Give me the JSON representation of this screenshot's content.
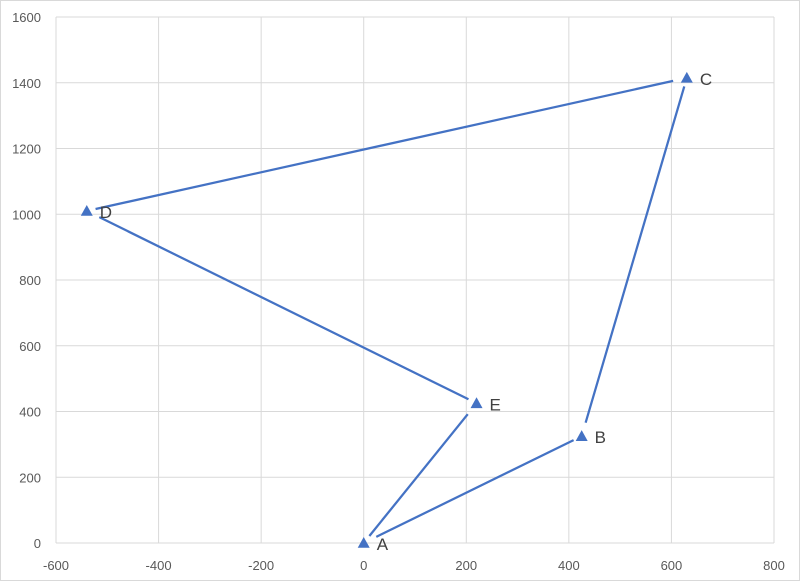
{
  "chart_data": {
    "type": "scatter",
    "title": "",
    "xlabel": "",
    "ylabel": "",
    "xlim": [
      -600,
      800
    ],
    "ylim": [
      0,
      1600
    ],
    "x_ticks": [
      -600,
      -400,
      -200,
      0,
      200,
      400,
      600,
      800
    ],
    "y_ticks": [
      0,
      200,
      400,
      600,
      800,
      1000,
      1200,
      1400,
      1600
    ],
    "grid": true,
    "legend": "none",
    "marker": "triangle",
    "line_style": "straight lines with gaps near points",
    "color": "#4472c4",
    "points": [
      {
        "label": "A",
        "x": 0,
        "y": 0
      },
      {
        "label": "B",
        "x": 425,
        "y": 325
      },
      {
        "label": "C",
        "x": 630,
        "y": 1415
      },
      {
        "label": "D",
        "x": -540,
        "y": 1010
      },
      {
        "label": "E",
        "x": 220,
        "y": 425
      },
      {
        "label": "A",
        "x": 0,
        "y": 0
      }
    ]
  }
}
